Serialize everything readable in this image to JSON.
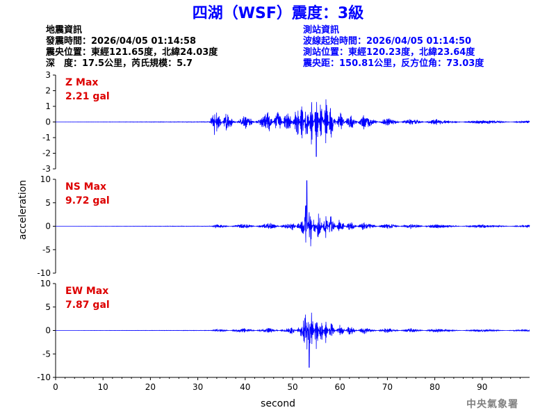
{
  "header": {
    "title": "四湖（WSF）震度：3級",
    "quake_info_heading": "地震資訊",
    "origin_time": "發震時間：2026/04/05 01:14:58",
    "epicenter": "震央位置：東經121.65度，北緯24.03度",
    "depth_magnitude": "深　度：17.5公里，芮氏規模：5.7",
    "station_info_heading": "測站資訊",
    "wave_start_time": "波線起始時間：2026/04/05 01:14:50",
    "station_location": "測站位置：東經120.23度，北緯23.64度",
    "distance_azimuth": "震央距：150.81公里，反方位角：73.03度"
  },
  "axes": {
    "ylabel": "acceleration",
    "xlabel": "second"
  },
  "footer": {
    "agency": "中央氣象署"
  },
  "colors": {
    "title": "#0000ff",
    "trace": "#0000ff",
    "max_label": "#dd0000",
    "station_info": "#0000ff",
    "agency": "#808080"
  },
  "chart_data": [
    {
      "type": "line",
      "component": "Z",
      "max_label": "Z Max",
      "max_value_label": "2.21 gal",
      "max_value": 2.21,
      "ylim": [
        -3,
        3
      ],
      "yticks": [
        -3,
        -2,
        -1,
        0,
        1,
        2,
        3
      ],
      "xlim": [
        0,
        100
      ],
      "xticks": [
        0,
        10,
        20,
        30,
        40,
        50,
        60,
        70,
        80,
        90
      ],
      "grid": false,
      "trace_keypoints": [
        [
          0,
          0.0
        ],
        [
          32.5,
          0.02
        ],
        [
          33.5,
          0.9
        ],
        [
          34,
          -0.8
        ],
        [
          36,
          0.6
        ],
        [
          40,
          -0.5
        ],
        [
          45,
          0.7
        ],
        [
          47,
          -0.9
        ],
        [
          49,
          1.1
        ],
        [
          51,
          -1.4
        ],
        [
          52,
          1.6
        ],
        [
          53,
          -1.8
        ],
        [
          54,
          1.8
        ],
        [
          55,
          -2.2
        ],
        [
          56,
          1.9
        ],
        [
          57,
          -1.9
        ],
        [
          58,
          1.2
        ],
        [
          60,
          -0.8
        ],
        [
          62,
          0.7
        ],
        [
          65,
          -0.5
        ],
        [
          70,
          0.3
        ],
        [
          75,
          -0.25
        ],
        [
          80,
          0.2
        ],
        [
          90,
          -0.15
        ],
        [
          100,
          0.1
        ]
      ]
    },
    {
      "type": "line",
      "component": "NS",
      "max_label": "NS Max",
      "max_value_label": "9.72 gal",
      "max_value": 9.72,
      "ylim": [
        -10,
        10
      ],
      "yticks": [
        -10,
        -5,
        0,
        5,
        10
      ],
      "xlim": [
        0,
        100
      ],
      "xticks": [
        0,
        10,
        20,
        30,
        40,
        50,
        60,
        70,
        80,
        90
      ],
      "grid": false,
      "trace_keypoints": [
        [
          0,
          0.0
        ],
        [
          33,
          0.05
        ],
        [
          34,
          0.5
        ],
        [
          40,
          -0.6
        ],
        [
          45,
          0.8
        ],
        [
          50,
          -1.0
        ],
        [
          52.5,
          2.5
        ],
        [
          53,
          9.72
        ],
        [
          53.3,
          -3.0
        ],
        [
          53.8,
          -5.5
        ],
        [
          54.5,
          3.5
        ],
        [
          55.5,
          -4.0
        ],
        [
          57,
          3.0
        ],
        [
          58,
          -2.5
        ],
        [
          60,
          1.8
        ],
        [
          62,
          -1.2
        ],
        [
          65,
          1.0
        ],
        [
          70,
          -0.7
        ],
        [
          75,
          0.6
        ],
        [
          80,
          -0.5
        ],
        [
          90,
          0.4
        ],
        [
          100,
          -0.3
        ]
      ]
    },
    {
      "type": "line",
      "component": "EW",
      "max_label": "EW Max",
      "max_value_label": "7.87 gal",
      "max_value": 7.87,
      "ylim": [
        -10,
        10
      ],
      "yticks": [
        -10,
        -5,
        0,
        5,
        10
      ],
      "xlim": [
        0,
        100
      ],
      "xticks": [
        0,
        10,
        20,
        30,
        40,
        50,
        60,
        70,
        80,
        90
      ],
      "grid": false,
      "trace_keypoints": [
        [
          0,
          0.0
        ],
        [
          33,
          0.05
        ],
        [
          34,
          0.4
        ],
        [
          40,
          -0.5
        ],
        [
          45,
          0.6
        ],
        [
          50,
          -0.8
        ],
        [
          52,
          1.5
        ],
        [
          53,
          5.5
        ],
        [
          53.5,
          -7.87
        ],
        [
          54,
          5.8
        ],
        [
          55,
          -4.8
        ],
        [
          56,
          3.6
        ],
        [
          57,
          -2.8
        ],
        [
          58,
          2.0
        ],
        [
          60,
          -1.5
        ],
        [
          62,
          1.1
        ],
        [
          65,
          -0.8
        ],
        [
          70,
          0.6
        ],
        [
          75,
          -0.5
        ],
        [
          80,
          0.4
        ],
        [
          90,
          -0.3
        ],
        [
          100,
          0.3
        ]
      ]
    }
  ]
}
